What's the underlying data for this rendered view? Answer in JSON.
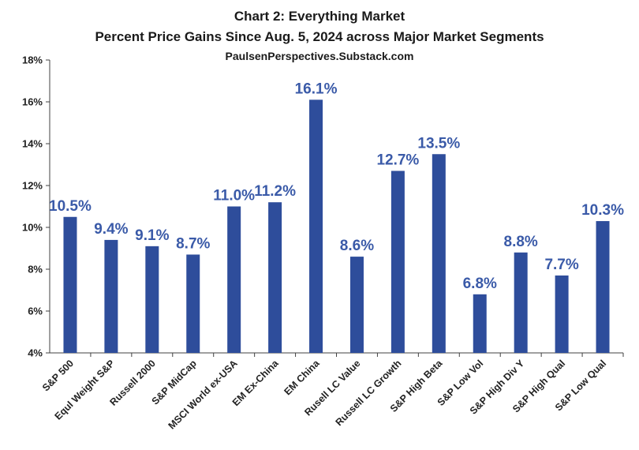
{
  "chart_data": {
    "type": "bar",
    "title": "Chart 2: Everything Market",
    "subtitle": "Percent Price Gains Since Aug. 5, 2024 across Major Market Segments",
    "source": "PaulsenPerspectives.Substack.com",
    "xlabel": "",
    "ylabel": "",
    "ylim": [
      4,
      18
    ],
    "y_ticks": [
      "4%",
      "6%",
      "8%",
      "10%",
      "12%",
      "14%",
      "16%",
      "18%"
    ],
    "y_tick_values": [
      4,
      6,
      8,
      10,
      12,
      14,
      16,
      18
    ],
    "categories": [
      "S&P 500",
      "Equl Weight S&P",
      "Russell 2000",
      "S&P MidCap",
      "MSCI World ex-USA",
      "EM Ex-China",
      "EM China",
      "Rusell LC Value",
      "Russell LC Growth",
      "S&P High Beta",
      "S&P Low Vol",
      "S&P High Div Y",
      "S&P High Qual",
      "S&P Low Qual"
    ],
    "values": [
      10.5,
      9.4,
      9.1,
      8.7,
      11.0,
      11.2,
      16.1,
      8.6,
      12.7,
      13.5,
      6.8,
      8.8,
      7.7,
      10.3
    ],
    "data_labels": [
      "10.5%",
      "9.4%",
      "9.1%",
      "8.7%",
      "11.0%",
      "11.2%",
      "16.1%",
      "8.6%",
      "12.7%",
      "13.5%",
      "6.8%",
      "8.8%",
      "7.7%",
      "10.3%"
    ],
    "grid": false,
    "legend": "none",
    "colors": {
      "bar": "#2e4d9b",
      "label": "#3a5aa8",
      "axis": "#404040"
    }
  }
}
